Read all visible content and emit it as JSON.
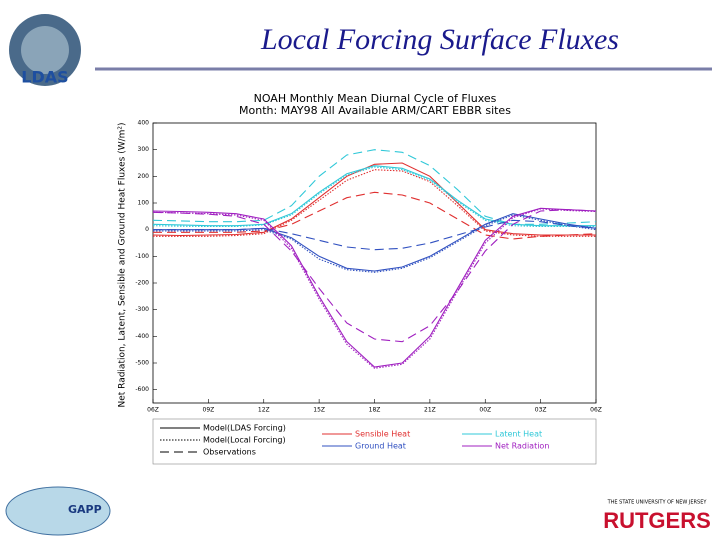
{
  "slide_title": "Local Forcing Surface Fluxes",
  "logos": {
    "top_left": "LDAS",
    "bottom_left": "GAPP",
    "bottom_right_small": "THE STATE UNIVERSITY OF NEW JERSEY",
    "bottom_right": "RUTGERS"
  },
  "chart_data": {
    "type": "line",
    "title": "NOAH Monthly Mean Diurnal Cycle of Fluxes",
    "subtitle": "Month: MAY98 All Available ARM/CART EBBR sites",
    "y_label": "Net Radiation, Latent, Sensible and Ground Heat Fluxes (W/m²)",
    "x": [
      0,
      1.5,
      3,
      4.5,
      6,
      7.5,
      9,
      10.5,
      12,
      13.5,
      15,
      16.5,
      18,
      19.5,
      21,
      22.5,
      24
    ],
    "xlim": [
      0,
      24
    ],
    "xticks": [
      {
        "value": 0,
        "label": "06Z"
      },
      {
        "value": 3,
        "label": "09Z"
      },
      {
        "value": 6,
        "label": "12Z"
      },
      {
        "value": 9,
        "label": "15Z"
      },
      {
        "value": 12,
        "label": "18Z"
      },
      {
        "value": 15,
        "label": "21Z"
      },
      {
        "value": 18,
        "label": "00Z"
      },
      {
        "value": 21,
        "label": "03Z"
      },
      {
        "value": 24,
        "label": "06Z"
      }
    ],
    "ylim": [
      -650,
      400
    ],
    "yticks": [
      400,
      300,
      200,
      100,
      0,
      -100,
      -200,
      -300,
      -400,
      -500,
      -600
    ],
    "styles": [
      {
        "name": "Model(LDAS Forcing)",
        "dash": "none"
      },
      {
        "name": "Model(Local Forcing)",
        "dash": "1.5,1.5"
      },
      {
        "name": "Observations",
        "dash": "9,5"
      }
    ],
    "variables": [
      {
        "name": "Sensible Heat",
        "color": "#e03030",
        "series": [
          {
            "values": [
              -20,
              -22,
              -20,
              -18,
              -10,
              40,
              120,
              200,
              245,
              250,
              200,
              100,
              0,
              -15,
              -20,
              -20,
              -20
            ]
          },
          {
            "values": [
              -25,
              -25,
              -25,
              -22,
              -15,
              35,
              110,
              185,
              225,
              220,
              180,
              90,
              -5,
              -20,
              -25,
              -25,
              -25
            ]
          },
          {
            "values": [
              -10,
              -10,
              -10,
              -10,
              -5,
              20,
              70,
              120,
              140,
              130,
              100,
              40,
              -20,
              -35,
              -25,
              -20,
              -15
            ]
          }
        ]
      },
      {
        "name": "Latent Heat",
        "color": "#30c8d8",
        "series": [
          {
            "values": [
              20,
              18,
              15,
              15,
              20,
              60,
              140,
              210,
              240,
              230,
              190,
              110,
              40,
              20,
              15,
              15,
              15
            ]
          },
          {
            "values": [
              15,
              13,
              12,
              12,
              18,
              55,
              135,
              205,
              235,
              225,
              185,
              105,
              35,
              15,
              12,
              12,
              12
            ]
          },
          {
            "values": [
              35,
              33,
              30,
              30,
              35,
              90,
              200,
              280,
              300,
              290,
              240,
              150,
              50,
              20,
              20,
              25,
              30
            ]
          }
        ]
      },
      {
        "name": "Ground Heat",
        "color": "#3050c0",
        "series": [
          {
            "values": [
              0,
              0,
              0,
              0,
              5,
              -30,
              -100,
              -145,
              -155,
              -140,
              -100,
              -40,
              20,
              60,
              40,
              20,
              5
            ]
          },
          {
            "values": [
              -5,
              -5,
              -5,
              -5,
              0,
              -35,
              -110,
              -150,
              -160,
              -145,
              -105,
              -45,
              15,
              55,
              35,
              15,
              0
            ]
          },
          {
            "values": [
              0,
              0,
              0,
              0,
              5,
              -15,
              -40,
              -65,
              -75,
              -70,
              -50,
              -20,
              10,
              35,
              30,
              15,
              5
            ]
          }
        ]
      },
      {
        "name": "Net Radiation",
        "color": "#a020c0",
        "series": [
          {
            "values": [
              70,
              68,
              65,
              60,
              40,
              -60,
              -250,
              -420,
              -515,
              -500,
              -400,
              -220,
              -40,
              50,
              80,
              75,
              70
            ]
          },
          {
            "values": [
              65,
              63,
              60,
              55,
              35,
              -70,
              -260,
              -430,
              -520,
              -505,
              -410,
              -230,
              -50,
              45,
              78,
              72,
              68
            ]
          },
          {
            "values": [
              65,
              62,
              58,
              50,
              20,
              -80,
              -220,
              -350,
              -410,
              -420,
              -360,
              -230,
              -80,
              20,
              70,
              75,
              70
            ]
          }
        ]
      }
    ]
  }
}
